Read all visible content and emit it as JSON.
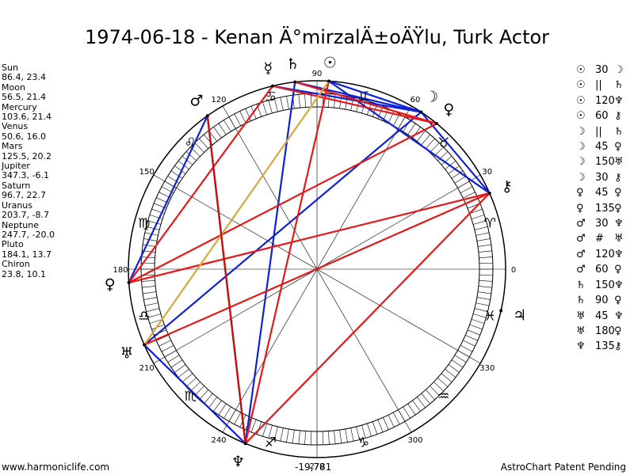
{
  "title": "1974-06-18 - Kenan Ä°mirzalÄ±oÄŸlu, Turk Actor",
  "planets": [
    {
      "name": "Sun",
      "coords": "86.4, 23.4"
    },
    {
      "name": "Moon",
      "coords": "56.5, 21.4"
    },
    {
      "name": "Mercury",
      "coords": "103.6, 21.4"
    },
    {
      "name": "Venus",
      "coords": "50.6, 16.0"
    },
    {
      "name": "Mars",
      "coords": "125.5, 20.2"
    },
    {
      "name": "Jupiter",
      "coords": "347.3, -6.1"
    },
    {
      "name": "Saturn",
      "coords": "96.7, 22.7"
    },
    {
      "name": "Uranus",
      "coords": "203.7, -8.7"
    },
    {
      "name": "Neptune",
      "coords": "247.7, -20.0"
    },
    {
      "name": "Pluto",
      "coords": "184.1, 13.7"
    },
    {
      "name": "Chiron",
      "coords": "23.8, 10.1"
    }
  ],
  "aspect_list": [
    {
      "p1": "☉",
      "aspect": "30",
      "p2": "☽"
    },
    {
      "p1": "☉",
      "aspect": "||",
      "p2": "♄"
    },
    {
      "p1": "☉",
      "aspect": "120",
      "p2": "♆"
    },
    {
      "p1": "☉",
      "aspect": "60",
      "p2": "⚷"
    },
    {
      "p1": "☽",
      "aspect": "||",
      "p2": "♄"
    },
    {
      "p1": "☽",
      "aspect": "45",
      "p2": "♀"
    },
    {
      "p1": "☽",
      "aspect": "150",
      "p2": "♅"
    },
    {
      "p1": "☽",
      "aspect": "30",
      "p2": "⚷"
    },
    {
      "p1": "♀",
      "aspect": "45",
      "p2": "♀"
    },
    {
      "p1": "♀",
      "aspect": "135",
      "p2": "♀"
    },
    {
      "p1": "♂",
      "aspect": "30",
      "p2": "♆"
    },
    {
      "p1": "♂",
      "aspect": "#",
      "p2": "♅"
    },
    {
      "p1": "♂",
      "aspect": "120",
      "p2": "♆"
    },
    {
      "p1": "♂",
      "aspect": "60",
      "p2": "♀"
    },
    {
      "p1": "♄",
      "aspect": "150",
      "p2": "♆"
    },
    {
      "p1": "♄",
      "aspect": "90",
      "p2": "♀"
    },
    {
      "p1": "♅",
      "aspect": "45",
      "p2": "♆"
    },
    {
      "p1": "♅",
      "aspect": "180",
      "p2": "♀"
    },
    {
      "p1": "♆",
      "aspect": "135",
      "p2": "⚷"
    }
  ],
  "footer": {
    "left": "www.harmoniclife.com",
    "center": "-19,781",
    "right": "AstroChart Patent Pending"
  },
  "chart_data": {
    "type": "scatter",
    "title": "1974-06-18 - Kenan Ä°mirzalÄ±oÄŸlu, Turk Actor",
    "degree_labels": [
      "0",
      "30",
      "60",
      "90",
      "120",
      "150",
      "180",
      "210",
      "240",
      "270",
      "300",
      "330"
    ],
    "points": [
      {
        "name": "Sun",
        "symbol": "☉",
        "longitude": 86.4,
        "latitude": 23.4
      },
      {
        "name": "Moon",
        "symbol": "☽",
        "longitude": 56.5,
        "latitude": 21.4
      },
      {
        "name": "Mercury",
        "symbol": "☿",
        "longitude": 103.6,
        "latitude": 21.4
      },
      {
        "name": "Venus",
        "symbol": "♀",
        "longitude": 50.6,
        "latitude": 16.0
      },
      {
        "name": "Mars",
        "symbol": "♂",
        "longitude": 125.5,
        "latitude": 20.2
      },
      {
        "name": "Jupiter",
        "symbol": "♃",
        "longitude": 347.3,
        "latitude": -6.1
      },
      {
        "name": "Saturn",
        "symbol": "♄",
        "longitude": 96.7,
        "latitude": 22.7
      },
      {
        "name": "Uranus",
        "symbol": "♅",
        "longitude": 203.7,
        "latitude": -8.7
      },
      {
        "name": "Neptune",
        "symbol": "♆",
        "longitude": 247.7,
        "latitude": -20.0
      },
      {
        "name": "Pluto",
        "symbol": "♀",
        "longitude": 184.1,
        "latitude": 13.7
      },
      {
        "name": "Chiron",
        "symbol": "⚷",
        "longitude": 23.8,
        "latitude": 10.1
      }
    ],
    "zodiac_signs": [
      {
        "symbol": "♈",
        "start": 0
      },
      {
        "symbol": "♉",
        "start": 30
      },
      {
        "symbol": "♊",
        "start": 60
      },
      {
        "symbol": "♋",
        "start": 90
      },
      {
        "symbol": "♌",
        "start": 120
      },
      {
        "symbol": "♍",
        "start": 150
      },
      {
        "symbol": "♎",
        "start": 180
      },
      {
        "symbol": "♏",
        "start": 210
      },
      {
        "symbol": "♐",
        "start": 240
      },
      {
        "symbol": "♑",
        "start": 270
      },
      {
        "symbol": "♒",
        "start": 300
      },
      {
        "symbol": "♓",
        "start": 330
      }
    ],
    "aspect_lines": [
      {
        "from": 96.7,
        "to": 56.5,
        "color": "blue"
      },
      {
        "from": 103.6,
        "to": 56.5,
        "color": "blue"
      },
      {
        "from": 86.4,
        "to": 56.5,
        "color": "blue"
      },
      {
        "from": 86.4,
        "to": 23.8,
        "color": "blue"
      },
      {
        "from": 56.5,
        "to": 23.8,
        "color": "blue"
      },
      {
        "from": 125.5,
        "to": 184.1,
        "color": "blue"
      },
      {
        "from": 96.7,
        "to": 247.7,
        "color": "blue"
      },
      {
        "from": 56.5,
        "to": 203.7,
        "color": "blue"
      },
      {
        "from": 203.7,
        "to": 247.7,
        "color": "blue"
      },
      {
        "from": 96.7,
        "to": 50.6,
        "color": "red"
      },
      {
        "from": 103.6,
        "to": 50.6,
        "color": "red"
      },
      {
        "from": 86.4,
        "to": 247.7,
        "color": "red"
      },
      {
        "from": 125.5,
        "to": 247.7,
        "color": "red"
      },
      {
        "from": 103.6,
        "to": 184.1,
        "color": "red"
      },
      {
        "from": 50.6,
        "to": 184.1,
        "color": "red"
      },
      {
        "from": 23.8,
        "to": 184.1,
        "color": "red"
      },
      {
        "from": 23.8,
        "to": 203.7,
        "color": "red"
      },
      {
        "from": 23.8,
        "to": 247.7,
        "color": "red"
      },
      {
        "from": 86.4,
        "to": 203.7,
        "color": "goldenrod"
      },
      {
        "from": 125.5,
        "to": 247.7,
        "color": "red-dotted"
      }
    ]
  }
}
